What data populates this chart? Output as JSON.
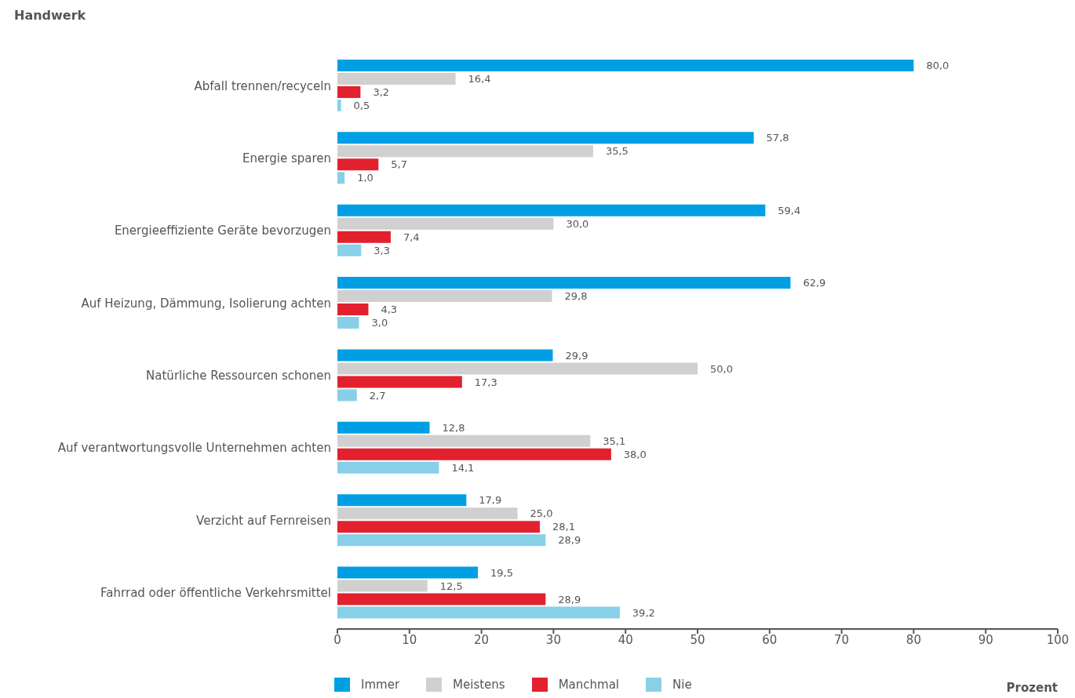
{
  "chart_data": {
    "type": "bar",
    "orientation": "horizontal",
    "title": "Handwerk",
    "xlabel": "Prozent",
    "categories": [
      "Abfall trennen/recyceln",
      "Energie sparen",
      "Energieeffiziente Geräte bevorzugen",
      "Auf Heizung, Dämmung, Isolierung achten",
      "Natürliche Ressourcen schonen",
      "Auf verantwortungsvolle Unternehmen achten",
      "Verzicht auf Fernreisen",
      "Fahrrad oder öffentliche Verkehrsmittel"
    ],
    "series": [
      {
        "name": "Immer",
        "color": "#009fe3",
        "values": [
          80.0,
          57.8,
          59.4,
          62.9,
          29.9,
          12.8,
          17.9,
          19.5
        ],
        "value_labels": [
          "80,0",
          "57,8",
          "59,4",
          "62,9",
          "29,9",
          "12,8",
          "17,9",
          "19,5"
        ]
      },
      {
        "name": "Meistens",
        "color": "#d0d0d0",
        "values": [
          16.4,
          35.5,
          30.0,
          29.8,
          50.0,
          35.1,
          25.0,
          12.5
        ],
        "value_labels": [
          "16,4",
          "35,5",
          "30,0",
          "29,8",
          "50,0",
          "35,1",
          "25,0",
          "12,5"
        ]
      },
      {
        "name": "Manchmal",
        "color": "#e3202e",
        "values": [
          3.2,
          5.7,
          7.4,
          4.3,
          17.3,
          38.0,
          28.1,
          28.9
        ],
        "value_labels": [
          "3,2",
          "5,7",
          "7,4",
          "4,3",
          "17,3",
          "38,0",
          "28,1",
          "28,9"
        ]
      },
      {
        "name": "Nie",
        "color": "#88d0e8",
        "values": [
          0.5,
          1.0,
          3.3,
          3.0,
          2.7,
          14.1,
          28.9,
          39.2
        ],
        "value_labels": [
          "0,5",
          "1,0",
          "3,3",
          "3,0",
          "2,7",
          "14,1",
          "28,9",
          "39,2"
        ]
      }
    ],
    "xlim": [
      0,
      100
    ],
    "xticks": [
      0,
      10,
      20,
      30,
      40,
      50,
      60,
      70,
      80,
      90,
      100
    ],
    "legend": "bottom left",
    "grid": false
  }
}
